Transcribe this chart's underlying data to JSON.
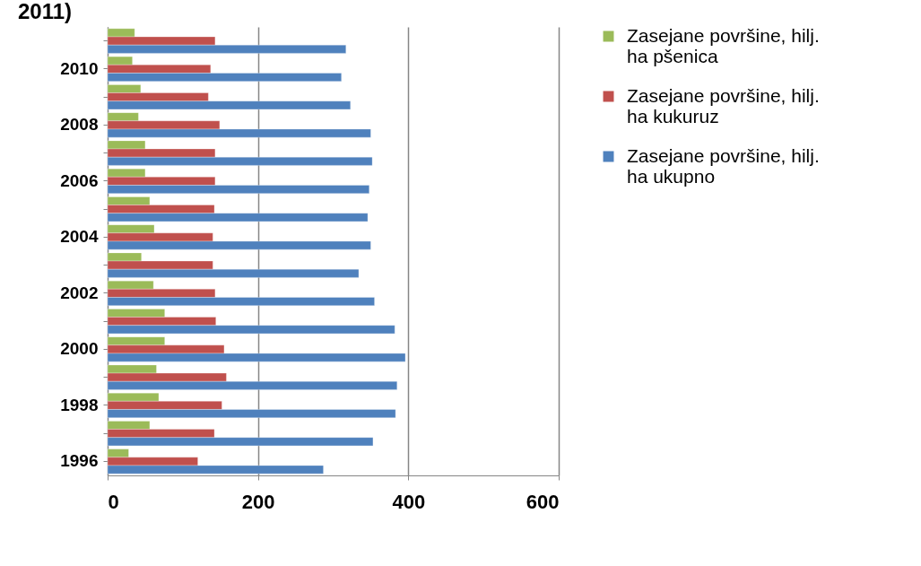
{
  "chart_data": {
    "type": "bar",
    "orientation": "horizontal",
    "title": "2011)",
    "categories": [
      null,
      "2010",
      null,
      "2008",
      null,
      "2006",
      null,
      "2004",
      null,
      "2002",
      null,
      "2000",
      null,
      "1998",
      null,
      "1996"
    ],
    "series": [
      {
        "name": "Zasejane površine, hilj. ha pšenica",
        "color": "#9bbb59",
        "values": [
          36,
          33,
          44,
          41,
          50,
          50,
          56,
          62,
          45,
          61,
          76,
          76,
          65,
          68,
          56,
          28
        ]
      },
      {
        "name": "Zasejane površine, hilj. ha kukuruz",
        "color": "#c0504d",
        "values": [
          143,
          137,
          134,
          149,
          143,
          143,
          142,
          140,
          140,
          143,
          144,
          155,
          158,
          152,
          142,
          120
        ]
      },
      {
        "name": "Zasejane površine, hilj. ha ukupno",
        "color": "#4f81bd",
        "values": [
          317,
          311,
          323,
          350,
          352,
          348,
          346,
          350,
          334,
          355,
          382,
          396,
          385,
          383,
          353,
          287
        ]
      }
    ],
    "xlim": [
      0,
      600
    ],
    "xticks": [
      0,
      200,
      400,
      600
    ],
    "grid": "x",
    "legend": "right"
  }
}
